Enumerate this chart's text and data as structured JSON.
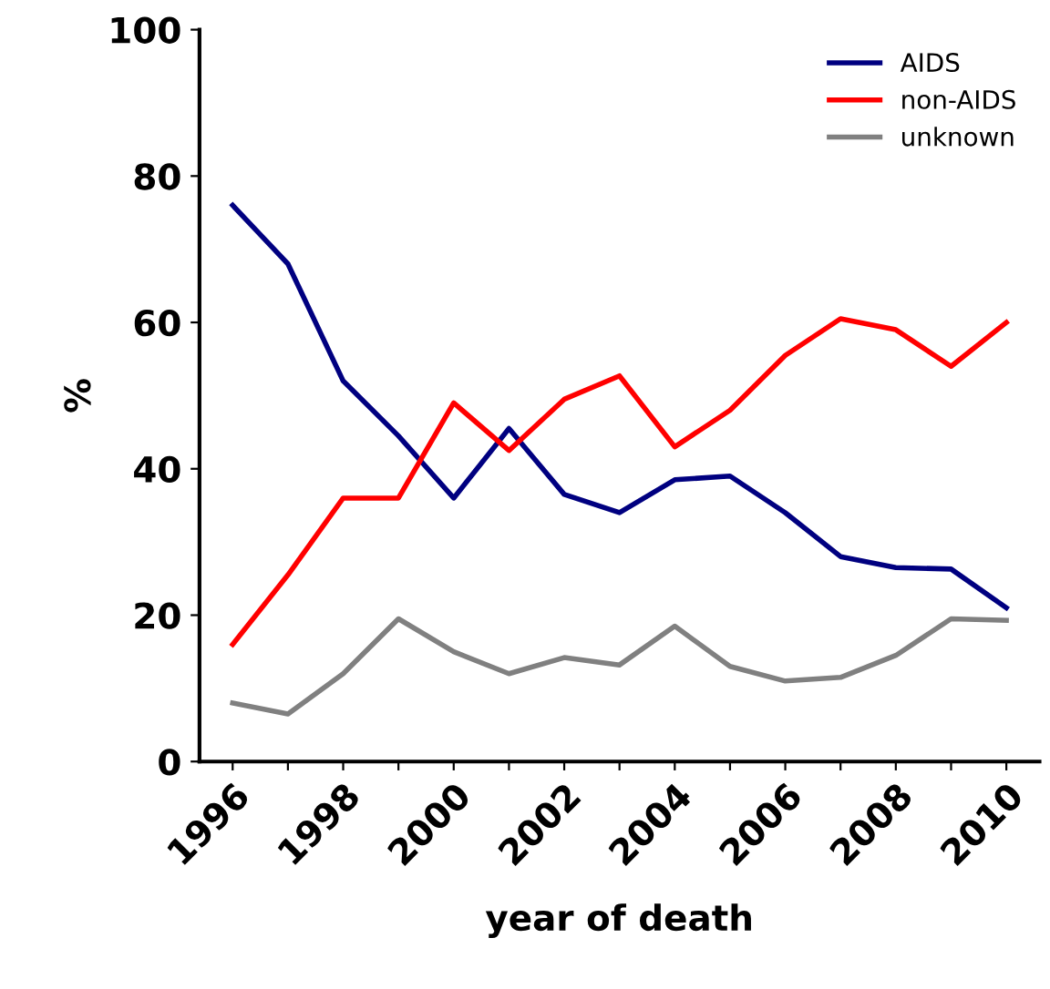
{
  "chart_data": {
    "type": "line",
    "xlabel": "year of death",
    "ylabel": "%",
    "categories": [
      "1996",
      null,
      "1998",
      null,
      "2000",
      null,
      "2002",
      null,
      "2004",
      null,
      "2006",
      null,
      "2008",
      null,
      "2010"
    ],
    "series": [
      {
        "name": "AIDS",
        "color": "#000080",
        "values": [
          76,
          68,
          52,
          44.5,
          36,
          45.5,
          36.5,
          34,
          38.5,
          39,
          34,
          28,
          26.5,
          26.3,
          21
        ]
      },
      {
        "name": "non-AIDS",
        "color": "#ff0000",
        "values": [
          16,
          25.5,
          36,
          36,
          49,
          42.5,
          49.5,
          52.7,
          43,
          48,
          55.5,
          60.5,
          59,
          54,
          60
        ]
      },
      {
        "name": "unknown",
        "color": "#808080",
        "values": [
          8,
          6.5,
          12,
          19.5,
          15,
          12,
          14.2,
          13.2,
          18.5,
          13,
          11,
          11.5,
          14.5,
          19.5,
          19.3
        ]
      }
    ],
    "ylim": [
      0,
      100
    ],
    "yticks": [
      0,
      20,
      40,
      60,
      80,
      100
    ],
    "grid": false,
    "legend": "top right",
    "marker": "none",
    "line_style": "solid"
  }
}
